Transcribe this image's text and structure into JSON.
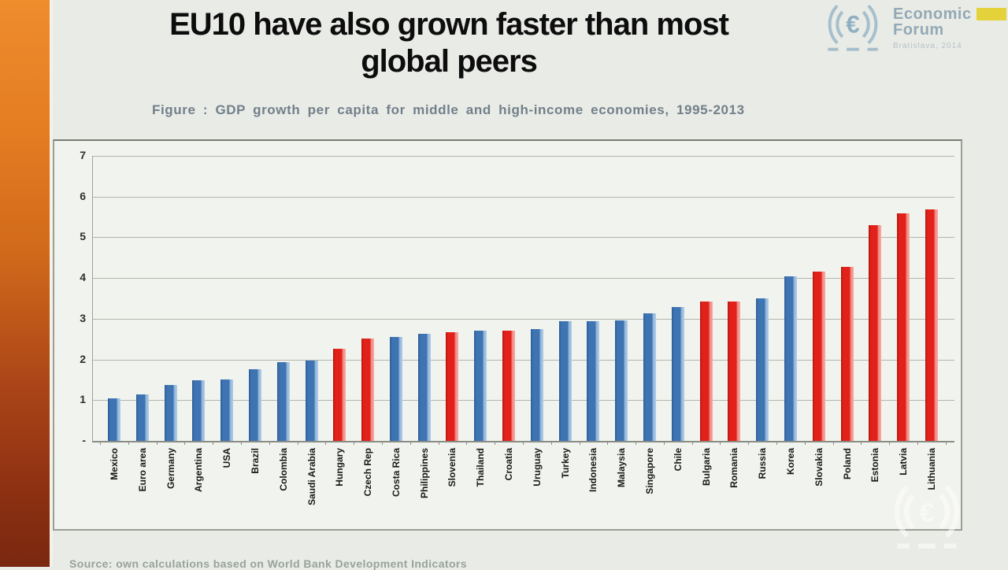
{
  "slide": {
    "title_line1": "EU10 have also grown faster than most",
    "title_line2": "global peers",
    "caption": "Figure : GDP growth per capita for middle and high-income economies,  1995-2013",
    "footer": "Source: own calculations based on World Bank Development Indicators"
  },
  "logo": {
    "euro_symbol": "€",
    "name_line1": "Economic",
    "name_line2": "Forum",
    "subtitle": "Bratislava, 2014",
    "badge_color": "#e4d23b",
    "accent_color": "#93a9b6"
  },
  "chart_data": {
    "type": "bar",
    "title": "GDP growth per capita for middle and high-income economies, 1995-2013",
    "xlabel": "",
    "ylabel": "",
    "ylim": [
      0,
      7
    ],
    "yticks": [
      0,
      1,
      2,
      3,
      4,
      5,
      6,
      7
    ],
    "ytick_labels": [
      "-",
      "1",
      "2",
      "3",
      "4",
      "5",
      "6",
      "7"
    ],
    "grid": true,
    "legend": "none",
    "colors": {
      "eu10": "#e2221a",
      "peer": "#3e74b2"
    },
    "categories": [
      "Mexico",
      "Euro area",
      "Germany",
      "Argentina",
      "USA",
      "Brazil",
      "Colombia",
      "Saudi Arabia",
      "Hungary",
      "Czech Rep",
      "Costa Rica",
      "Philippines",
      "Slovenia",
      "Thailand",
      "Croatia",
      "Uruguay",
      "Turkey",
      "Indonesia",
      "Malaysia",
      "Singapore",
      "Chile",
      "Bulgaria",
      "Romania",
      "Russia",
      "Korea",
      "Slovakia",
      "Poland",
      "Estonia",
      "Latvia",
      "Lithuania"
    ],
    "values": [
      1.05,
      1.15,
      1.37,
      1.48,
      1.5,
      1.76,
      1.94,
      1.98,
      2.26,
      2.51,
      2.56,
      2.63,
      2.67,
      2.71,
      2.71,
      2.75,
      2.93,
      2.93,
      2.96,
      3.13,
      3.29,
      3.42,
      3.42,
      3.5,
      4.04,
      4.16,
      4.28,
      5.29,
      5.59,
      5.69
    ],
    "groups": [
      "peer",
      "peer",
      "peer",
      "peer",
      "peer",
      "peer",
      "peer",
      "peer",
      "eu10",
      "eu10",
      "peer",
      "peer",
      "eu10",
      "peer",
      "eu10",
      "peer",
      "peer",
      "peer",
      "peer",
      "peer",
      "peer",
      "eu10",
      "eu10",
      "peer",
      "peer",
      "eu10",
      "eu10",
      "eu10",
      "eu10",
      "eu10"
    ]
  }
}
